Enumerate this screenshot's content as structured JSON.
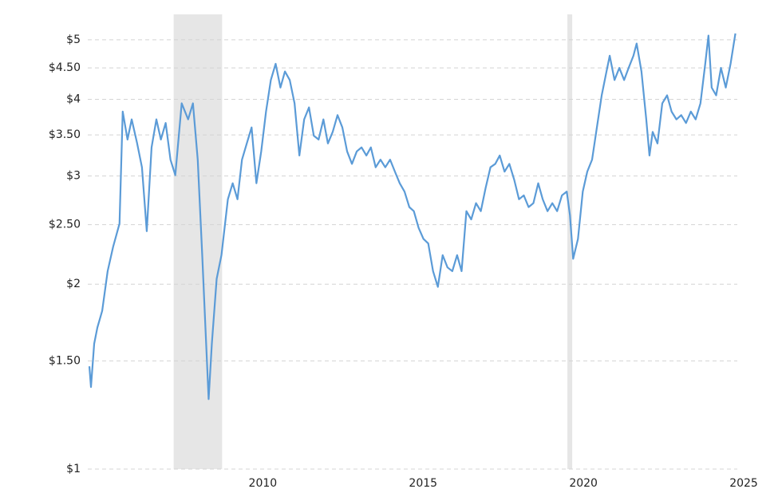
{
  "chart_data": {
    "type": "line",
    "log_scale": true,
    "grid": true,
    "color": "#5b9bd7",
    "shaded_regions": [
      [
        2007.22,
        2008.73
      ],
      [
        2019.5,
        2019.65
      ]
    ],
    "shade_color": "#e6e6e6",
    "xlim": [
      2004.59,
      2024.8
    ],
    "xticks": [
      2010,
      2015,
      2020,
      2025
    ],
    "ylim": [
      1,
      5.5
    ],
    "yticks": [
      {
        "value": 1,
        "label": "$1"
      },
      {
        "value": 1.5,
        "label": "$1.50"
      },
      {
        "value": 2,
        "label": "$2"
      },
      {
        "value": 2.5,
        "label": "$2.50"
      },
      {
        "value": 3,
        "label": "$3"
      },
      {
        "value": 3.5,
        "label": "$3.50"
      },
      {
        "value": 4,
        "label": "$4"
      },
      {
        "value": 4.5,
        "label": "$4.50"
      },
      {
        "value": 5,
        "label": "$5"
      }
    ],
    "x": [
      2004.59,
      2004.64,
      2004.74,
      2004.84,
      2004.99,
      2005.16,
      2005.33,
      2005.53,
      2005.63,
      2005.78,
      2005.91,
      2006.08,
      2006.23,
      2006.38,
      2006.53,
      2006.68,
      2006.82,
      2006.97,
      2007.12,
      2007.27,
      2007.47,
      2007.67,
      2007.82,
      2007.97,
      2008.11,
      2008.21,
      2008.31,
      2008.41,
      2008.56,
      2008.71,
      2008.91,
      2009.06,
      2009.21,
      2009.35,
      2009.5,
      2009.65,
      2009.8,
      2009.95,
      2010.1,
      2010.25,
      2010.4,
      2010.55,
      2010.69,
      2010.84,
      2010.99,
      2011.14,
      2011.29,
      2011.44,
      2011.59,
      2011.74,
      2011.89,
      2012.03,
      2012.18,
      2012.33,
      2012.48,
      2012.63,
      2012.78,
      2012.93,
      2013.08,
      2013.23,
      2013.37,
      2013.52,
      2013.67,
      2013.82,
      2013.97,
      2014.12,
      2014.27,
      2014.42,
      2014.57,
      2014.71,
      2014.86,
      2015.01,
      2015.16,
      2015.31,
      2015.46,
      2015.61,
      2015.76,
      2015.91,
      2016.06,
      2016.2,
      2016.35,
      2016.5,
      2016.65,
      2016.8,
      2016.95,
      2017.1,
      2017.25,
      2017.39,
      2017.54,
      2017.69,
      2017.84,
      2017.99,
      2018.14,
      2018.29,
      2018.44,
      2018.59,
      2018.73,
      2018.88,
      2019.03,
      2019.18,
      2019.33,
      2019.48,
      2019.58,
      2019.68,
      2019.83,
      2019.98,
      2020.12,
      2020.27,
      2020.42,
      2020.57,
      2020.72,
      2020.82,
      2020.97,
      2021.12,
      2021.27,
      2021.41,
      2021.56,
      2021.66,
      2021.81,
      2021.96,
      2022.06,
      2022.16,
      2022.31,
      2022.46,
      2022.61,
      2022.75,
      2022.9,
      2023.05,
      2023.2,
      2023.35,
      2023.5,
      2023.65,
      2023.8,
      2023.9,
      2024.0,
      2024.14,
      2024.29,
      2024.44,
      2024.59,
      2024.74
    ],
    "values": [
      1.47,
      1.36,
      1.6,
      1.7,
      1.81,
      2.1,
      2.3,
      2.51,
      3.82,
      3.44,
      3.71,
      3.39,
      3.1,
      2.44,
      3.34,
      3.71,
      3.44,
      3.66,
      3.19,
      3.01,
      3.94,
      3.71,
      3.94,
      3.19,
      2.23,
      1.7,
      1.3,
      1.6,
      2.04,
      2.23,
      2.75,
      2.92,
      2.75,
      3.19,
      3.39,
      3.6,
      2.92,
      3.29,
      3.82,
      4.3,
      4.57,
      4.18,
      4.44,
      4.3,
      3.94,
      3.24,
      3.71,
      3.88,
      3.49,
      3.44,
      3.71,
      3.39,
      3.54,
      3.77,
      3.6,
      3.29,
      3.14,
      3.29,
      3.34,
      3.24,
      3.34,
      3.1,
      3.19,
      3.1,
      3.19,
      3.05,
      2.92,
      2.83,
      2.67,
      2.63,
      2.47,
      2.37,
      2.33,
      2.1,
      1.98,
      2.23,
      2.13,
      2.1,
      2.23,
      2.1,
      2.63,
      2.55,
      2.71,
      2.63,
      2.87,
      3.1,
      3.14,
      3.24,
      3.05,
      3.14,
      2.96,
      2.75,
      2.79,
      2.67,
      2.71,
      2.92,
      2.75,
      2.63,
      2.71,
      2.63,
      2.79,
      2.83,
      2.59,
      2.2,
      2.37,
      2.83,
      3.05,
      3.19,
      3.6,
      4.06,
      4.44,
      4.71,
      4.3,
      4.5,
      4.3,
      4.5,
      4.71,
      4.93,
      4.44,
      3.71,
      3.24,
      3.54,
      3.39,
      3.94,
      4.06,
      3.82,
      3.71,
      3.77,
      3.66,
      3.82,
      3.71,
      3.94,
      4.57,
      5.08,
      4.18,
      4.06,
      4.5,
      4.18,
      4.57,
      5.12
    ]
  }
}
